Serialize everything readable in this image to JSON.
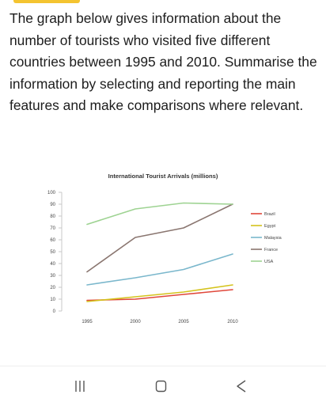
{
  "question_text": "The graph below gives information about the number of tourists who visited five different countries between 1995 and 2010. Summarise the information by selecting and reporting the main features and make comparisons where relevant.",
  "colors": {
    "accent": "#f4c430"
  },
  "nav": {
    "recent_icon": "recent-apps-icon",
    "home_icon": "home-icon",
    "back_icon": "back-icon"
  },
  "chart_data": {
    "type": "line",
    "title": "International Tourist Arrivals (millions)",
    "xlabel": "",
    "ylabel": "",
    "x": [
      "1995",
      "2000",
      "2005",
      "2010"
    ],
    "ylim": [
      0,
      100
    ],
    "yticks": [
      0,
      10,
      20,
      30,
      40,
      50,
      60,
      70,
      80,
      90,
      100
    ],
    "grid": false,
    "legend_position": "right",
    "series": [
      {
        "name": "Brazil",
        "color": "#e0473a",
        "values": [
          9,
          10,
          14,
          18
        ]
      },
      {
        "name": "Egypt",
        "color": "#d4c31c",
        "values": [
          8,
          12,
          16,
          22
        ]
      },
      {
        "name": "Malaysia",
        "color": "#7ab7cc",
        "values": [
          22,
          28,
          35,
          48
        ]
      },
      {
        "name": "France",
        "color": "#8a7670",
        "values": [
          33,
          62,
          70,
          90
        ]
      },
      {
        "name": "USA",
        "color": "#9ed392",
        "values": [
          73,
          86,
          91,
          90
        ]
      }
    ]
  }
}
